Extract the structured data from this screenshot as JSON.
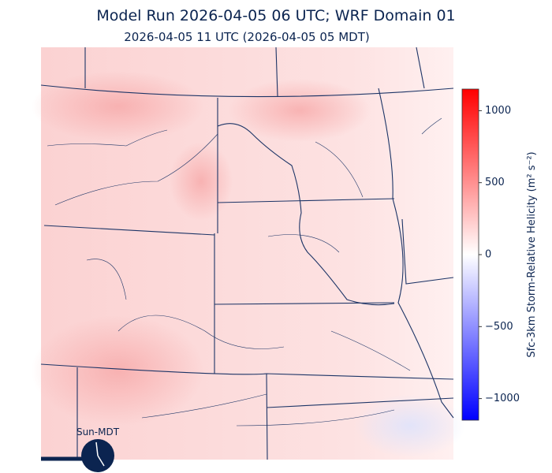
{
  "header": {
    "title": "Model Run 2026-04-05 06 UTC; WRF Domain 01",
    "subtitle": "2026-04-05 11 UTC  (2026-04-05 05 MDT)"
  },
  "colorbar": {
    "label": "Sfc-3km Storm-Relative Helicity (m² s⁻²)",
    "lim": [
      -1150,
      1150
    ],
    "ticks": [
      {
        "value": -1000,
        "label": "−1000"
      },
      {
        "value": -500,
        "label": "−500"
      },
      0,
      500,
      1000
    ],
    "colors": [
      "#0000ff",
      "#ffffff",
      "#ff0000"
    ]
  },
  "clock": {
    "label": "Sun-MDT"
  }
}
